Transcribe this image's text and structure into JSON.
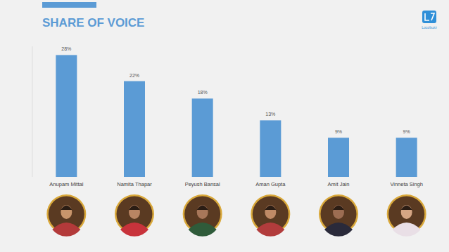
{
  "chart_data": {
    "type": "bar",
    "title": "SHARE OF VOICE",
    "categories": [
      "Anupam Mittal",
      "Namita Thapar",
      "Peyush Bansal",
      "Aman Gupta",
      "Amit Jain",
      "Vinneta Singh"
    ],
    "values": [
      28,
      22,
      18,
      13,
      9,
      9
    ],
    "value_labels": [
      "28%",
      "22%",
      "18%",
      "13%",
      "9%",
      "9%"
    ],
    "color": "#5b9bd5",
    "ylim": [
      0,
      30
    ],
    "data_labels": true,
    "tick_labels": "x",
    "grid": false
  },
  "logo": {
    "text": "Locobuzz"
  }
}
